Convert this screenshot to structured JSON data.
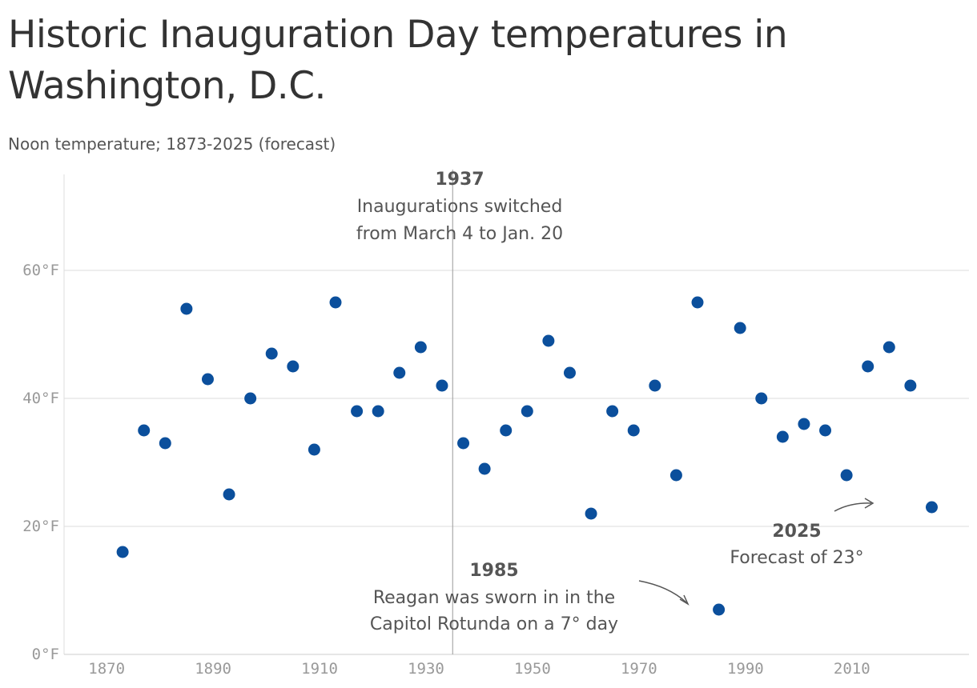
{
  "title": "Historic Inauguration Day temperatures in Washington, D.C.",
  "subtitle": "Noon temperature; 1873-2025 (forecast)",
  "colors": {
    "point": "#0b4f9c",
    "grid": "#dddddd",
    "text": "#555555",
    "tick": "#999999",
    "refline": "#999999"
  },
  "chart_data": {
    "type": "scatter",
    "xlim": [
      1862,
      2032
    ],
    "ylim": [
      0,
      60
    ],
    "x_ticks": [
      1870,
      1890,
      1910,
      1930,
      1950,
      1970,
      1990,
      2010
    ],
    "y_ticks": [
      0,
      20,
      40,
      60
    ],
    "y_tick_labels": [
      "0°F",
      "20°F",
      "40°F",
      "60°F"
    ],
    "grid": "horizontal",
    "points": [
      {
        "x": 1873,
        "y": 16
      },
      {
        "x": 1877,
        "y": 35
      },
      {
        "x": 1881,
        "y": 33
      },
      {
        "x": 1885,
        "y": 54
      },
      {
        "x": 1889,
        "y": 43
      },
      {
        "x": 1893,
        "y": 25
      },
      {
        "x": 1897,
        "y": 40
      },
      {
        "x": 1901,
        "y": 47
      },
      {
        "x": 1905,
        "y": 45
      },
      {
        "x": 1909,
        "y": 32
      },
      {
        "x": 1913,
        "y": 55
      },
      {
        "x": 1917,
        "y": 38
      },
      {
        "x": 1921,
        "y": 38
      },
      {
        "x": 1925,
        "y": 44
      },
      {
        "x": 1929,
        "y": 48
      },
      {
        "x": 1933,
        "y": 42
      },
      {
        "x": 1937,
        "y": 33
      },
      {
        "x": 1941,
        "y": 29
      },
      {
        "x": 1945,
        "y": 35
      },
      {
        "x": 1949,
        "y": 38
      },
      {
        "x": 1953,
        "y": 49
      },
      {
        "x": 1957,
        "y": 44
      },
      {
        "x": 1961,
        "y": 22
      },
      {
        "x": 1965,
        "y": 38
      },
      {
        "x": 1969,
        "y": 35
      },
      {
        "x": 1973,
        "y": 42
      },
      {
        "x": 1977,
        "y": 28
      },
      {
        "x": 1981,
        "y": 55
      },
      {
        "x": 1985,
        "y": 7
      },
      {
        "x": 1989,
        "y": 51
      },
      {
        "x": 1993,
        "y": 40
      },
      {
        "x": 1997,
        "y": 34
      },
      {
        "x": 2001,
        "y": 36
      },
      {
        "x": 2005,
        "y": 35
      },
      {
        "x": 2009,
        "y": 28
      },
      {
        "x": 2013,
        "y": 45
      },
      {
        "x": 2017,
        "y": 48
      },
      {
        "x": 2021,
        "y": 42
      },
      {
        "x": 2025,
        "y": 23
      }
    ],
    "reference_line": {
      "x": 1935
    },
    "annotations": {
      "a1937": {
        "title": "1937",
        "line1": "Inaugurations switched",
        "line2": "from March 4 to Jan. 20"
      },
      "a1985": {
        "title": "1985",
        "line1": "Reagan was sworn in in the",
        "line2": "Capitol Rotunda on a 7° day"
      },
      "a2025": {
        "title": "2025",
        "line1": "Forecast of 23°"
      }
    }
  }
}
